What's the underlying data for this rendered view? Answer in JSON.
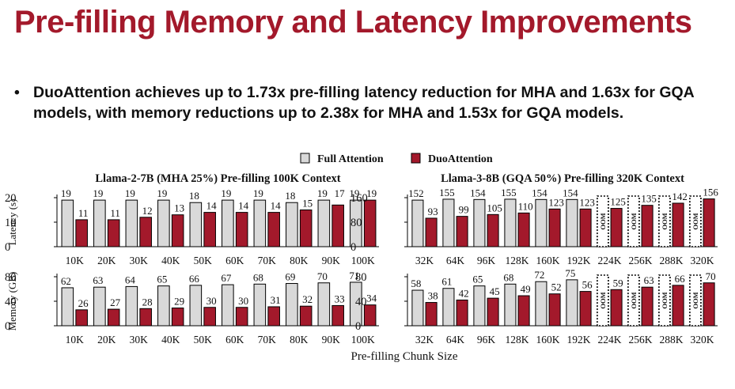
{
  "slide": {
    "title": "Pre-filling Memory and Latency Improvements",
    "bullet_marker": "•",
    "bullet": "DuoAttention achieves up to 1.73x pre-filling latency reduction for MHA and 1.63x for GQA models, with memory reductions up to 2.38x for MHA and 1.53x for GQA models."
  },
  "colors": {
    "title": "#a3192b",
    "full": "#d9d9d9",
    "duo": "#a3192b"
  },
  "chart_data": {
    "type": "bar",
    "legend": [
      {
        "name": "Full Attention",
        "color": "#d9d9d9"
      },
      {
        "name": "DuoAttention",
        "color": "#a3192b"
      }
    ],
    "legend_position": "top-center",
    "xlabel": "Pre-filling Chunk Size",
    "oom_label": "OOM",
    "panels": [
      {
        "id": "llama2-latency",
        "title": "Llama-2-7B (MHA 25%) Pre-filling 100K Context",
        "ylabel": "Latency (s)",
        "ylim": [
          0,
          20
        ],
        "yticks": [
          0,
          10,
          20
        ],
        "categories": [
          "10K",
          "20K",
          "30K",
          "40K",
          "50K",
          "60K",
          "70K",
          "80K",
          "90K",
          "100K"
        ],
        "series": [
          {
            "name": "Full Attention",
            "values": [
              19,
              19,
              19,
              19,
              18,
              19,
              19,
              18,
              19,
              19
            ]
          },
          {
            "name": "DuoAttention",
            "values": [
              11,
              11,
              12,
              13,
              14,
              14,
              14,
              15,
              17,
              19
            ]
          }
        ]
      },
      {
        "id": "llama3-latency",
        "title": "Llama-3-8B (GQA 50%) Pre-filling 320K Context",
        "ylabel": "",
        "ylim": [
          0,
          160
        ],
        "yticks": [
          0,
          80,
          160
        ],
        "categories": [
          "32K",
          "64K",
          "96K",
          "128K",
          "160K",
          "192K",
          "224K",
          "256K",
          "288K",
          "320K"
        ],
        "series": [
          {
            "name": "Full Attention",
            "values": [
              152,
              155,
              154,
              155,
              154,
              154,
              null,
              null,
              null,
              null
            ]
          },
          {
            "name": "DuoAttention",
            "values": [
              93,
              99,
              105,
              110,
              123,
              123,
              125,
              135,
              142,
              156
            ]
          }
        ]
      },
      {
        "id": "llama2-memory",
        "title": "",
        "ylabel": "Memory (GB)",
        "ylim": [
          0,
          80
        ],
        "yticks": [
          0,
          40,
          80
        ],
        "categories": [
          "10K",
          "20K",
          "30K",
          "40K",
          "50K",
          "60K",
          "70K",
          "80K",
          "90K",
          "100K"
        ],
        "series": [
          {
            "name": "Full Attention",
            "values": [
              62,
              63,
              64,
              65,
              66,
              67,
              68,
              69,
              70,
              71
            ]
          },
          {
            "name": "DuoAttention",
            "values": [
              26,
              27,
              28,
              29,
              30,
              30,
              31,
              32,
              33,
              34
            ]
          }
        ]
      },
      {
        "id": "llama3-memory",
        "title": "",
        "ylabel": "",
        "ylim": [
          0,
          80
        ],
        "yticks": [
          0,
          40,
          80
        ],
        "categories": [
          "32K",
          "64K",
          "96K",
          "128K",
          "160K",
          "192K",
          "224K",
          "256K",
          "288K",
          "320K"
        ],
        "series": [
          {
            "name": "Full Attention",
            "values": [
              58,
              61,
              65,
              68,
              72,
              75,
              null,
              null,
              null,
              null
            ]
          },
          {
            "name": "DuoAttention",
            "values": [
              38,
              42,
              45,
              49,
              52,
              56,
              59,
              63,
              66,
              70
            ]
          }
        ]
      }
    ]
  }
}
